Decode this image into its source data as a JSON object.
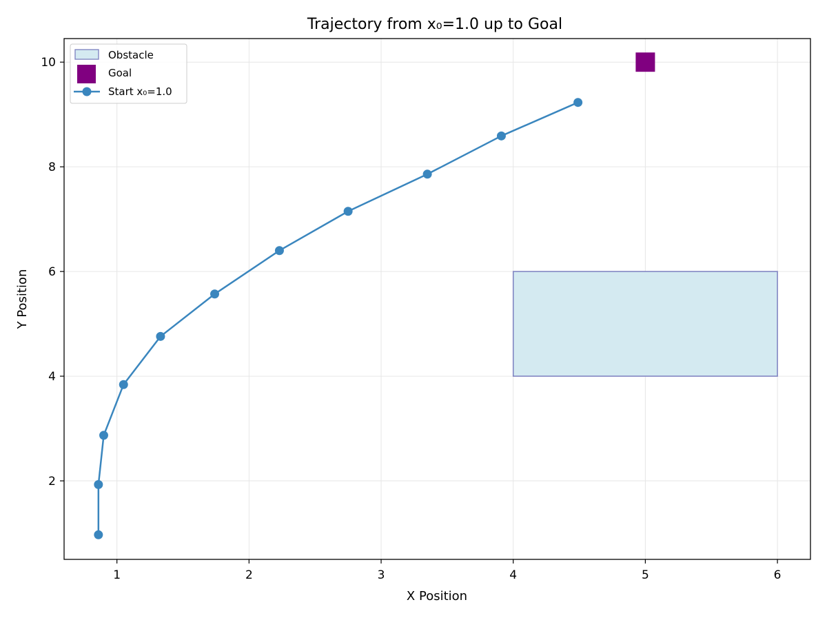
{
  "chart_data": {
    "type": "line",
    "title": "Trajectory from x₀=1.0 up to Goal",
    "xlabel": "X Position",
    "ylabel": "Y Position",
    "xlim": [
      0.6,
      6.25
    ],
    "ylim": [
      0.5,
      10.45
    ],
    "xticks": [
      "1",
      "2",
      "3",
      "4",
      "5",
      "6"
    ],
    "xtick_values": [
      1,
      2,
      3,
      4,
      5,
      6
    ],
    "yticks": [
      "2",
      "4",
      "6",
      "8",
      "10"
    ],
    "ytick_values": [
      2,
      4,
      6,
      8,
      10
    ],
    "grid": true,
    "legend_position": "top-left",
    "obstacle": {
      "name": "Obstacle",
      "x_range": [
        4,
        6
      ],
      "y_range": [
        4,
        6
      ],
      "fill_color": "#d4eaf1",
      "edge_color": "#7b7fbf"
    },
    "goal": {
      "name": "Goal",
      "x": 5,
      "y": 10,
      "color": "#800080"
    },
    "series": [
      {
        "name": "Start x₀=1.0",
        "color": "#3a86be",
        "points": [
          {
            "x": 0.86,
            "y": 0.97
          },
          {
            "x": 0.86,
            "y": 1.93
          },
          {
            "x": 0.9,
            "y": 2.87
          },
          {
            "x": 1.05,
            "y": 3.84
          },
          {
            "x": 1.33,
            "y": 4.76
          },
          {
            "x": 1.74,
            "y": 5.57
          },
          {
            "x": 2.23,
            "y": 6.4
          },
          {
            "x": 2.75,
            "y": 7.15
          },
          {
            "x": 3.35,
            "y": 7.86
          },
          {
            "x": 3.91,
            "y": 8.59
          },
          {
            "x": 4.49,
            "y": 9.23
          }
        ]
      }
    ]
  }
}
